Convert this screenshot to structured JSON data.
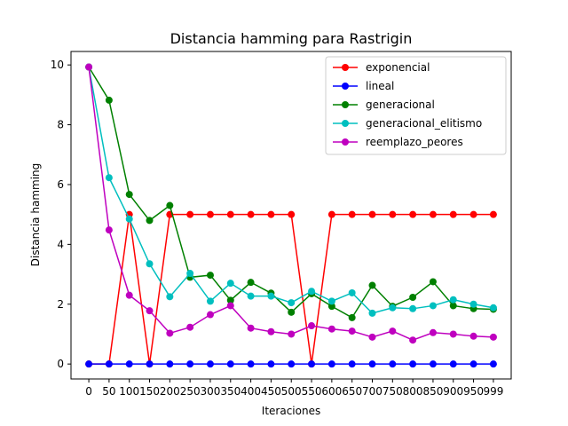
{
  "chart_data": {
    "type": "line",
    "title": "Distancia hamming para Rastrigin",
    "xlabel": "Iteraciones",
    "ylabel": "Distancia hamming",
    "x": [
      0,
      50,
      100,
      150,
      200,
      250,
      300,
      350,
      400,
      450,
      500,
      550,
      600,
      650,
      700,
      750,
      800,
      850,
      900,
      950,
      999
    ],
    "x_tick_labels": [
      "0",
      "50",
      "100",
      "150",
      "200",
      "250",
      "300",
      "350",
      "400",
      "450",
      "500",
      "550",
      "600",
      "650",
      "700",
      "750",
      "800",
      "850",
      "900",
      "950",
      "999"
    ],
    "y_ticks": [
      0,
      2,
      4,
      6,
      8,
      10
    ],
    "y_tick_labels": [
      "0",
      "2",
      "4",
      "6",
      "8",
      "10"
    ],
    "xlim": [
      -44,
      1043
    ],
    "ylim": [
      -0.5,
      10.45
    ],
    "grid": false,
    "legend_position": "top-right",
    "series": [
      {
        "name": "exponencial",
        "color": "#ff0000",
        "values": [
          0,
          0,
          5.0,
          0,
          5.0,
          5.0,
          5.0,
          5.0,
          5.0,
          5.0,
          5.0,
          0,
          5.0,
          5.0,
          5.0,
          5.0,
          5.0,
          5.0,
          5.0,
          5.0,
          5.0
        ]
      },
      {
        "name": "lineal",
        "color": "#0000ff",
        "values": [
          0,
          0,
          0,
          0,
          0,
          0,
          0,
          0,
          0,
          0,
          0,
          0,
          0,
          0,
          0,
          0,
          0,
          0,
          0,
          0,
          0
        ]
      },
      {
        "name": "generacional",
        "color": "#008000",
        "values": [
          9.93,
          8.82,
          5.67,
          4.8,
          5.3,
          2.9,
          2.97,
          2.13,
          2.73,
          2.37,
          1.73,
          2.35,
          1.93,
          1.55,
          2.63,
          1.93,
          2.23,
          2.75,
          1.95,
          1.85,
          1.83
        ]
      },
      {
        "name": "generacional_elitismo",
        "color": "#00bfbf",
        "values": [
          9.93,
          6.23,
          4.85,
          3.35,
          2.25,
          3.03,
          2.1,
          2.7,
          2.27,
          2.27,
          2.05,
          2.43,
          2.1,
          2.38,
          1.7,
          1.88,
          1.85,
          1.95,
          2.15,
          2.0,
          1.88
        ]
      },
      {
        "name": "reemplazo_peores",
        "color": "#bf00bf",
        "values": [
          9.93,
          4.48,
          2.3,
          1.78,
          1.03,
          1.23,
          1.65,
          1.95,
          1.2,
          1.08,
          1.0,
          1.28,
          1.17,
          1.1,
          0.9,
          1.1,
          0.8,
          1.05,
          1.0,
          0.93,
          0.9
        ]
      }
    ]
  }
}
